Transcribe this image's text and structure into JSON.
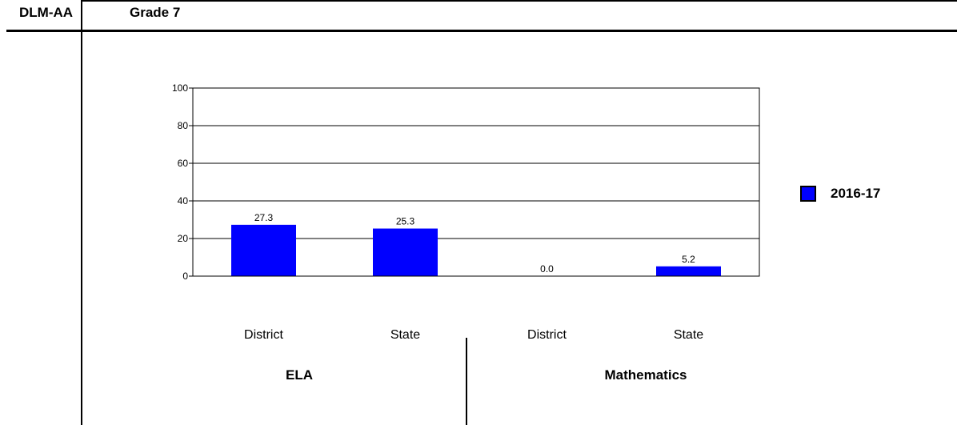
{
  "header": {
    "program": "DLM-AA",
    "grade": "Grade 7"
  },
  "colors": {
    "bar": "#0000ff",
    "grid": "#000000"
  },
  "chart_data": {
    "type": "bar",
    "categories": [
      "District",
      "State",
      "District",
      "State"
    ],
    "groups": [
      "ELA",
      "Mathematics"
    ],
    "series": [
      {
        "name": "2016-17",
        "values": [
          27.3,
          25.3,
          0.0,
          5.2
        ],
        "labels": [
          "27.3",
          "25.3",
          "0.0",
          "5.2"
        ]
      }
    ],
    "yticks": [
      "0",
      "20",
      "40",
      "60",
      "80",
      "100"
    ],
    "ylim": [
      0,
      100
    ],
    "grid": true,
    "legend_position": "right"
  }
}
